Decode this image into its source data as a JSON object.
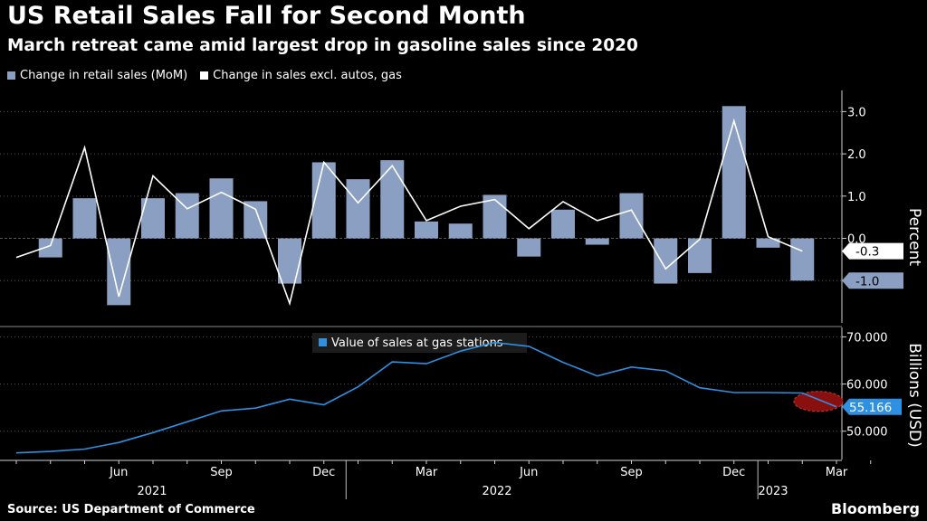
{
  "header": {
    "title": "US Retail Sales Fall for Second Month",
    "subtitle": "March retreat came amid largest drop in gasoline sales since 2020"
  },
  "footer": {
    "source": "Source: US Department of Commerce",
    "brand": "Bloomberg"
  },
  "colors": {
    "bar": "#8a9fc1",
    "line_white": "#ffffff",
    "line_blue": "#2f8fe0",
    "highlight": "#8a0f0f",
    "axis": "#d0d0d0",
    "grid": "#555555"
  },
  "chart_data": [
    {
      "type": "bar+line",
      "title": "",
      "ylabel": "Percent",
      "ylim": [
        -2.0,
        3.5
      ],
      "yticks": [
        -1.0,
        0.0,
        1.0,
        2.0,
        3.0
      ],
      "ytick_labels": [
        "-1.0",
        "0.0",
        "1.0",
        "2.0",
        "3.0"
      ],
      "x": [
        "2021-03",
        "2021-04",
        "2021-05",
        "2021-06",
        "2021-07",
        "2021-08",
        "2021-09",
        "2021-10",
        "2021-11",
        "2021-12",
        "2022-01",
        "2022-02",
        "2022-03",
        "2022-04",
        "2022-05",
        "2022-06",
        "2022-07",
        "2022-08",
        "2022-09",
        "2022-10",
        "2022-11",
        "2022-12",
        "2023-01",
        "2023-02",
        "2023-03"
      ],
      "series": [
        {
          "name": "Change in retail sales (MoM)",
          "kind": "bar",
          "values": [
            null,
            -0.45,
            0.95,
            -1.58,
            0.95,
            1.07,
            1.42,
            0.88,
            -1.07,
            1.8,
            1.4,
            1.85,
            0.4,
            0.35,
            1.03,
            -0.43,
            0.68,
            -0.15,
            1.07,
            -1.07,
            -0.82,
            3.13,
            -0.22,
            -1.0,
            null
          ]
        },
        {
          "name": "Change in sales excl. autos, gas",
          "kind": "line",
          "values": [
            -0.45,
            -0.17,
            2.15,
            -1.38,
            1.48,
            0.7,
            1.09,
            0.69,
            -1.54,
            1.8,
            0.84,
            1.72,
            0.42,
            0.76,
            0.92,
            0.23,
            0.87,
            0.42,
            0.67,
            -0.72,
            -0.02,
            2.78,
            0.04,
            -0.3,
            null
          ]
        }
      ],
      "last_value_labels": [
        {
          "series": "Change in sales excl. autos, gas",
          "label": "-0.3",
          "value": -0.3
        },
        {
          "series": "Change in retail sales (MoM)",
          "label": "-1.0",
          "value": -1.0
        }
      ]
    },
    {
      "type": "line",
      "title": "Value of sales at gas stations",
      "ylabel": "Billions (USD)",
      "ylim": [
        44000,
        72000
      ],
      "yticks": [
        50000,
        60000,
        70000
      ],
      "ytick_labels": [
        "50.000",
        "60.000",
        "70.000"
      ],
      "x": [
        "2021-03",
        "2021-04",
        "2021-05",
        "2021-06",
        "2021-07",
        "2021-08",
        "2021-09",
        "2021-10",
        "2021-11",
        "2021-12",
        "2022-01",
        "2022-02",
        "2022-03",
        "2022-04",
        "2022-05",
        "2022-06",
        "2022-07",
        "2022-08",
        "2022-09",
        "2022-10",
        "2022-11",
        "2022-12",
        "2023-01",
        "2023-02",
        "2023-03"
      ],
      "series": [
        {
          "name": "Value of sales at gas stations",
          "values": [
            45400,
            45700,
            46200,
            47600,
            49700,
            52000,
            54300,
            54900,
            56800,
            55600,
            59400,
            64700,
            64300,
            67000,
            68800,
            68000,
            64600,
            61700,
            63600,
            62800,
            59200,
            58200,
            58200,
            58100,
            55166
          ]
        }
      ],
      "last_value_label": "55.166",
      "xtick_labels": [
        "Jun",
        "Sep",
        "Dec",
        "Mar",
        "Jun",
        "Sep",
        "Dec",
        "Mar"
      ],
      "year_labels": [
        "2021",
        "2022",
        "2023"
      ]
    }
  ]
}
